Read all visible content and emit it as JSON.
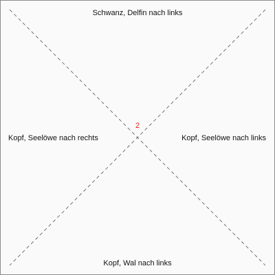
{
  "labels": {
    "top": "Schwanz, Delfin nach links",
    "bottom": "Kopf, Wal nach links",
    "left": "Kopf, Seelöwe nach rechts",
    "right": "Kopf, Seelöwe nach links"
  },
  "center_number": "2",
  "colors": {
    "line": "#555555",
    "number": "#e02020",
    "border": "#8a8a8a",
    "background": "#fafafa",
    "text": "#111111"
  }
}
